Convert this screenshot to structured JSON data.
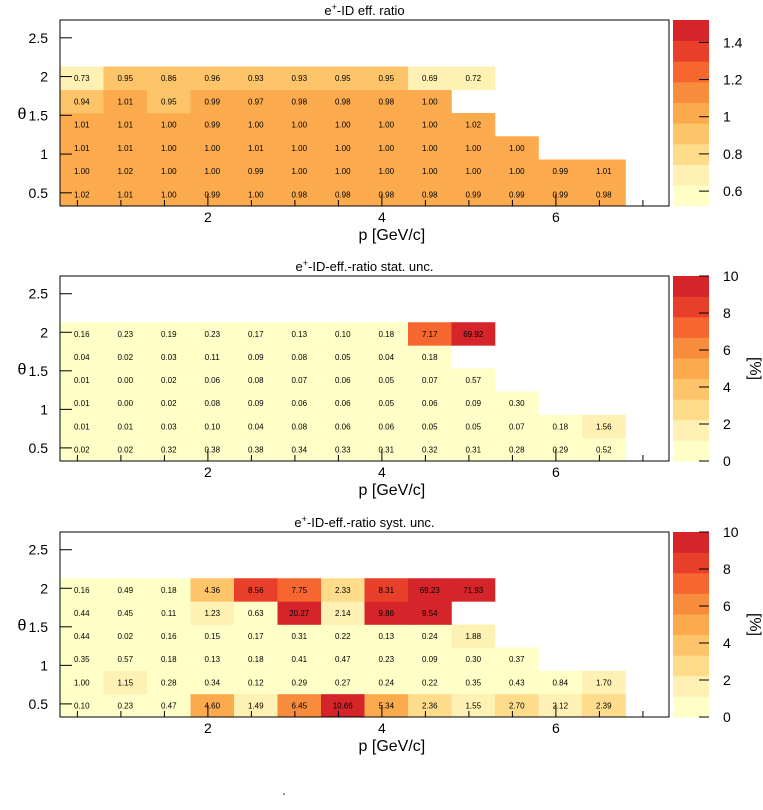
{
  "figure": {
    "bottom_mark": "'"
  },
  "colors": {
    "palette": [
      "#ffffc8",
      "#fff0b3",
      "#fedc8c",
      "#fdc469",
      "#fbab4e",
      "#f88c3d",
      "#f5672f",
      "#e83f2b",
      "#d5252a"
    ],
    "empty": "#ffffff",
    "frame": "#000000"
  },
  "chart_data": [
    {
      "type": "heatmap",
      "title": "e⁺-ID eff. ratio",
      "title_parts": {
        "pre": "e",
        "sup": "+",
        "post": "-ID eff. ratio"
      },
      "xlabel": "p [GeV/c]",
      "ylabel": "θ",
      "zlabel": "",
      "x_edges": [
        0.3,
        0.8,
        1.3,
        1.8,
        2.3,
        2.8,
        3.3,
        3.8,
        4.3,
        4.8,
        5.3,
        5.8,
        6.3,
        6.8,
        7.3
      ],
      "y_edges": [
        0.33,
        0.63,
        0.93,
        1.23,
        1.53,
        1.83,
        2.13,
        2.43,
        2.73
      ],
      "xlim": [
        0.3,
        7.3
      ],
      "ylim": [
        0.33,
        2.73
      ],
      "xticks": [
        2,
        4,
        6
      ],
      "yticks": [
        0.5,
        1,
        1.5,
        2,
        2.5
      ],
      "ytick_labels": [
        "0.5",
        "1",
        "1.5",
        "2",
        "2.5"
      ],
      "zlim": [
        0.52,
        1.52
      ],
      "zticks": [
        0.6,
        0.8,
        1,
        1.2,
        1.4
      ],
      "ztick_labels": [
        "0.6",
        "0.8",
        "1",
        "1.2",
        "1.4"
      ],
      "rows": [
        {
          "cols": [
            1,
            14
          ],
          "values": [
            "1.02",
            "1.01",
            "1.00",
            "0.99",
            "1.00",
            "0.98",
            "0.98",
            "0.98",
            "0.98",
            "0.99",
            "0.99",
            "0.99",
            "0.98"
          ]
        },
        {
          "cols": [
            1,
            14
          ],
          "values": [
            "1.00",
            "1.02",
            "1.00",
            "1.00",
            "0.99",
            "1.00",
            "1.00",
            "1.00",
            "1.00",
            "1.00",
            "1.00",
            "0.99",
            "1.01"
          ]
        },
        {
          "cols": [
            1,
            12
          ],
          "values": [
            "1.01",
            "1.01",
            "1.00",
            "1.00",
            "1.01",
            "1.00",
            "1.00",
            "1.00",
            "1.00",
            "1.00",
            "1.00"
          ]
        },
        {
          "cols": [
            1,
            11
          ],
          "values": [
            "1.01",
            "1.01",
            "1.00",
            "0.99",
            "1.00",
            "1.00",
            "1.00",
            "1.00",
            "1.00",
            "1.02"
          ]
        },
        {
          "cols": [
            1,
            10
          ],
          "values": [
            "0.94",
            "1.01",
            "0.95",
            "0.99",
            "0.97",
            "0.98",
            "0.98",
            "0.98",
            "1.00"
          ]
        },
        {
          "cols": [
            1,
            11
          ],
          "values": [
            "0.73",
            "0.95",
            "0.86",
            "0.96",
            "0.93",
            "0.93",
            "0.95",
            "0.95",
            "0.69",
            "0.72"
          ]
        }
      ]
    },
    {
      "type": "heatmap",
      "title": "e⁺-ID-eff.-ratio stat. unc.",
      "title_parts": {
        "pre": "e",
        "sup": "+",
        "post": "-ID-eff.-ratio stat. unc."
      },
      "xlabel": "p [GeV/c]",
      "ylabel": "θ",
      "zlabel": "[%]",
      "x_edges": [
        0.3,
        0.8,
        1.3,
        1.8,
        2.3,
        2.8,
        3.3,
        3.8,
        4.3,
        4.8,
        5.3,
        5.8,
        6.3,
        6.8,
        7.3
      ],
      "y_edges": [
        0.33,
        0.63,
        0.93,
        1.23,
        1.53,
        1.83,
        2.13,
        2.43,
        2.73
      ],
      "xlim": [
        0.3,
        7.3
      ],
      "ylim": [
        0.33,
        2.73
      ],
      "xticks": [
        2,
        4,
        6
      ],
      "yticks": [
        0.5,
        1,
        1.5,
        2,
        2.5
      ],
      "ytick_labels": [
        "0.5",
        "1",
        "1.5",
        "2",
        "2.5"
      ],
      "zlim": [
        0,
        10
      ],
      "zticks": [
        0,
        2,
        4,
        6,
        8,
        10
      ],
      "ztick_labels": [
        "0",
        "2",
        "4",
        "6",
        "8",
        "10"
      ],
      "rows": [
        {
          "cols": [
            1,
            14
          ],
          "values": [
            "0.02",
            "0.02",
            "0.32",
            "0.38",
            "0.38",
            "0.34",
            "0.33",
            "0.31",
            "0.32",
            "0.31",
            "0.28",
            "0.29",
            "0.52"
          ]
        },
        {
          "cols": [
            1,
            14
          ],
          "values": [
            "0.01",
            "0.01",
            "0.03",
            "0.10",
            "0.04",
            "0.08",
            "0.06",
            "0.06",
            "0.05",
            "0.05",
            "0.07",
            "0.18",
            "1.56"
          ]
        },
        {
          "cols": [
            1,
            12
          ],
          "values": [
            "0.01",
            "0.00",
            "0.02",
            "0.08",
            "0.09",
            "0.06",
            "0.06",
            "0.05",
            "0.06",
            "0.09",
            "0.30"
          ]
        },
        {
          "cols": [
            1,
            11
          ],
          "values": [
            "0.01",
            "0.00",
            "0.02",
            "0.06",
            "0.08",
            "0.07",
            "0.06",
            "0.05",
            "0.07",
            "0.57"
          ]
        },
        {
          "cols": [
            1,
            10
          ],
          "values": [
            "0.04",
            "0.02",
            "0.03",
            "0.11",
            "0.09",
            "0.08",
            "0.05",
            "0.04",
            "0.18"
          ]
        },
        {
          "cols": [
            1,
            11
          ],
          "values": [
            "0.16",
            "0.23",
            "0.19",
            "0.23",
            "0.17",
            "0.13",
            "0.10",
            "0.18",
            "7.17",
            "69.92"
          ]
        }
      ]
    },
    {
      "type": "heatmap",
      "title": "e⁺-ID-eff.-ratio syst. unc.",
      "title_parts": {
        "pre": "e",
        "sup": "+",
        "post": "-ID-eff.-ratio syst. unc."
      },
      "xlabel": "p [GeV/c]",
      "ylabel": "θ",
      "zlabel": "[%]",
      "x_edges": [
        0.3,
        0.8,
        1.3,
        1.8,
        2.3,
        2.8,
        3.3,
        3.8,
        4.3,
        4.8,
        5.3,
        5.8,
        6.3,
        6.8,
        7.3
      ],
      "y_edges": [
        0.33,
        0.63,
        0.93,
        1.23,
        1.53,
        1.83,
        2.13,
        2.43,
        2.73
      ],
      "xlim": [
        0.3,
        7.3
      ],
      "ylim": [
        0.33,
        2.73
      ],
      "xticks": [
        2,
        4,
        6
      ],
      "yticks": [
        0.5,
        1,
        1.5,
        2,
        2.5
      ],
      "ytick_labels": [
        "0.5",
        "1",
        "1.5",
        "2",
        "2.5"
      ],
      "zlim": [
        0,
        10
      ],
      "zticks": [
        0,
        2,
        4,
        6,
        8,
        10
      ],
      "ztick_labels": [
        "0",
        "2",
        "4",
        "6",
        "8",
        "10"
      ],
      "rows": [
        {
          "cols": [
            1,
            14
          ],
          "values": [
            "0.10",
            "0.23",
            "0.47",
            "4.60",
            "1.49",
            "6.45",
            "10.66",
            "5.34",
            "2.36",
            "1.55",
            "2.70",
            "2.12",
            "2.39"
          ]
        },
        {
          "cols": [
            1,
            14
          ],
          "values": [
            "1.00",
            "1.15",
            "0.28",
            "0.34",
            "0.12",
            "0.29",
            "0.27",
            "0.24",
            "0.22",
            "0.35",
            "0.43",
            "0.84",
            "1.70"
          ]
        },
        {
          "cols": [
            1,
            12
          ],
          "values": [
            "0.35",
            "0.57",
            "0.18",
            "0.13",
            "0.18",
            "0.41",
            "0.47",
            "0.23",
            "0.09",
            "0.30",
            "0.37"
          ]
        },
        {
          "cols": [
            1,
            11
          ],
          "values": [
            "0.44",
            "0.02",
            "0.16",
            "0.15",
            "0.17",
            "0.31",
            "0.22",
            "0.13",
            "0.24",
            "1.88"
          ]
        },
        {
          "cols": [
            1,
            10
          ],
          "values": [
            "0.44",
            "0.45",
            "0.11",
            "1.23",
            "0.63",
            "20.27",
            "2.14",
            "9.86",
            "9.54"
          ]
        },
        {
          "cols": [
            1,
            11
          ],
          "values": [
            "0.16",
            "0.49",
            "0.18",
            "4.36",
            "8.56",
            "7.75",
            "2.33",
            "8.31",
            "69.23",
            "71.93"
          ]
        }
      ]
    }
  ]
}
